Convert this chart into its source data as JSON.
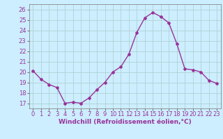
{
  "x": [
    0,
    1,
    2,
    3,
    4,
    5,
    6,
    7,
    8,
    9,
    10,
    11,
    12,
    13,
    14,
    15,
    16,
    17,
    18,
    19,
    20,
    21,
    22,
    23
  ],
  "y": [
    20.1,
    19.3,
    18.8,
    18.5,
    17.0,
    17.1,
    17.0,
    17.5,
    18.3,
    19.0,
    20.0,
    20.5,
    21.7,
    23.8,
    25.2,
    25.7,
    25.3,
    24.7,
    22.7,
    20.3,
    20.2,
    20.0,
    19.2,
    18.9
  ],
  "line_color": "#993399",
  "marker": "D",
  "marker_size": 2.0,
  "line_width": 1.0,
  "bg_color": "#cceeff",
  "grid_color": "#aacccc",
  "xlabel": "Windchill (Refroidissement éolien,°C)",
  "xlabel_color": "#993399",
  "xlabel_fontsize": 6.5,
  "tick_fontsize": 6.0,
  "tick_color": "#993399",
  "ylim": [
    16.5,
    26.5
  ],
  "yticks": [
    17,
    18,
    19,
    20,
    21,
    22,
    23,
    24,
    25,
    26
  ],
  "xticks": [
    0,
    1,
    2,
    3,
    4,
    5,
    6,
    7,
    8,
    9,
    10,
    11,
    12,
    13,
    14,
    15,
    16,
    17,
    18,
    19,
    20,
    21,
    22,
    23
  ]
}
